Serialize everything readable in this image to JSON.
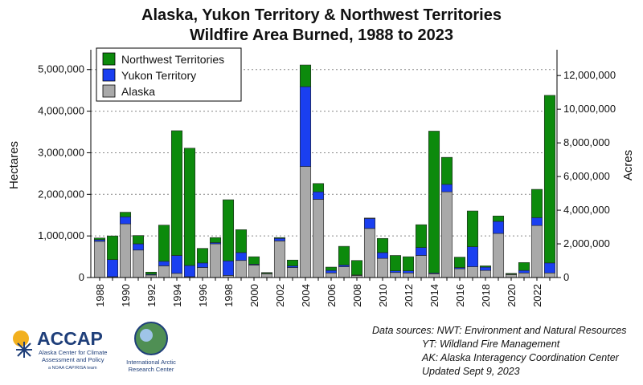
{
  "chart_data": {
    "type": "bar",
    "stacked": true,
    "title": [
      "Alaska, Yukon Territory & Northwest Territories",
      "Wildfire Area Burned, 1988 to 2023"
    ],
    "ylabel": "Hectares",
    "ylabel_right": "Acres",
    "ylim": [
      0,
      5400000
    ],
    "ylim_right_acres": [
      0,
      13343000
    ],
    "yticks": [
      0,
      1000000,
      2000000,
      3000000,
      4000000,
      5000000
    ],
    "ytick_labels": [
      "0",
      "1,000,000",
      "2,000,000",
      "3,000,000",
      "4,000,000",
      "5,000,000"
    ],
    "yticks_right": [
      0,
      2000000,
      4000000,
      6000000,
      8000000,
      10000000,
      12000000
    ],
    "ytick_labels_right": [
      "0",
      "2,000,000",
      "4,000,000",
      "6,000,000",
      "8,000,000",
      "10,000,000",
      "12,000,000"
    ],
    "categories": [
      "1988",
      "1989",
      "1990",
      "1991",
      "1992",
      "1993",
      "1994",
      "1995",
      "1996",
      "1997",
      "1998",
      "1999",
      "2000",
      "2001",
      "2002",
      "2003",
      "2004",
      "2005",
      "2006",
      "2007",
      "2008",
      "2009",
      "2010",
      "2011",
      "2012",
      "2013",
      "2014",
      "2015",
      "2016",
      "2017",
      "2018",
      "2019",
      "2020",
      "2021",
      "2022",
      "2023"
    ],
    "xtick_labels": [
      "1988",
      "",
      "1990",
      "",
      "1992",
      "",
      "1994",
      "",
      "1996",
      "",
      "1998",
      "",
      "2000",
      "",
      "2002",
      "",
      "2004",
      "",
      "2006",
      "",
      "2008",
      "",
      "2010",
      "",
      "2012",
      "",
      "2014",
      "",
      "2016",
      "",
      "2018",
      "",
      "2020",
      "",
      "2022",
      ""
    ],
    "legend_position": "top-left",
    "grid": "horizontal-dotted",
    "series": [
      {
        "name": "Alaska",
        "color": "#a9a9a9",
        "values": [
          870000,
          20000,
          1290000,
          660000,
          60000,
          280000,
          100000,
          20000,
          240000,
          810000,
          50000,
          410000,
          300000,
          90000,
          880000,
          240000,
          2670000,
          1880000,
          110000,
          260000,
          50000,
          1180000,
          460000,
          120000,
          110000,
          530000,
          90000,
          2060000,
          210000,
          260000,
          170000,
          1060000,
          70000,
          110000,
          1250000,
          110000
        ]
      },
      {
        "name": "Yukon Territory",
        "color": "#1a3ff0",
        "values": [
          40000,
          410000,
          170000,
          150000,
          20000,
          110000,
          430000,
          270000,
          110000,
          30000,
          350000,
          190000,
          20000,
          10000,
          60000,
          40000,
          1920000,
          180000,
          60000,
          40000,
          10000,
          240000,
          140000,
          40000,
          50000,
          190000,
          20000,
          180000,
          30000,
          480000,
          80000,
          290000,
          10000,
          60000,
          190000,
          240000
        ]
      },
      {
        "name": "Northwest Territories",
        "color": "#0c8a0c",
        "values": [
          40000,
          570000,
          110000,
          200000,
          50000,
          870000,
          3000000,
          2820000,
          350000,
          120000,
          1470000,
          550000,
          180000,
          20000,
          20000,
          140000,
          520000,
          200000,
          80000,
          450000,
          350000,
          10000,
          340000,
          370000,
          340000,
          550000,
          3410000,
          650000,
          250000,
          860000,
          30000,
          130000,
          20000,
          190000,
          680000,
          4030000
        ]
      }
    ]
  },
  "footer": {
    "line1": "Data sources: NWT: Environment and Natural Resources",
    "line2": "YT: Wildland Fire Management",
    "line3": "AK: Alaska Interagency Coordination Center",
    "line4": "Updated Sept 9, 2023"
  },
  "logos": {
    "accap_name": "ACCAP",
    "accap_line1": "Alaska Center for Climate",
    "accap_line2": "Assessment and Policy",
    "accap_line3": "a NOAA CAP/RISA team",
    "iarc_line1": "International Arctic",
    "iarc_line2": "Research Center"
  }
}
